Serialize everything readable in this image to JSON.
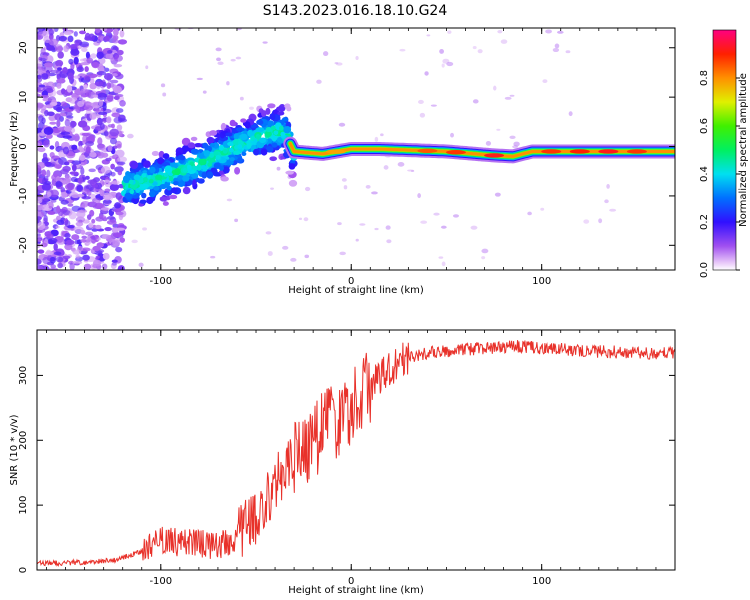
{
  "title": "S143.2023.016.18.10.G24",
  "chart_data": [
    {
      "type": "heatmap",
      "xlabel": "Height of straight line (km)",
      "ylabel": "Frequency (Hz)",
      "xlim": [
        -165,
        170
      ],
      "ylim": [
        -25,
        24
      ],
      "x_ticks": [
        -100,
        0,
        100
      ],
      "y_ticks": [
        -20,
        -10,
        0,
        10,
        20
      ],
      "colorbar": {
        "label": "Normalized spectral amplitude",
        "range": [
          0,
          1
        ],
        "ticks": [
          0.0,
          0.2,
          0.4,
          0.6,
          0.8
        ]
      },
      "ridge_trace": [
        {
          "x": -118,
          "y": -8
        },
        {
          "x": -100,
          "y": -6.5
        },
        {
          "x": -80,
          "y": -3.5
        },
        {
          "x": -60,
          "y": 0
        },
        {
          "x": -45,
          "y": 2.5
        },
        {
          "x": -35,
          "y": 3
        },
        {
          "x": -30,
          "y": -1
        },
        {
          "x": -15,
          "y": -1.5
        },
        {
          "x": 0,
          "y": -0.5
        },
        {
          "x": 15,
          "y": -0.5
        },
        {
          "x": 50,
          "y": -1
        },
        {
          "x": 75,
          "y": -1.8
        },
        {
          "x": 85,
          "y": -2
        },
        {
          "x": 95,
          "y": -1
        },
        {
          "x": 130,
          "y": -1
        },
        {
          "x": 170,
          "y": -1
        }
      ],
      "grid": false
    },
    {
      "type": "line",
      "xlabel": "Height of straight line (km)",
      "ylabel": "SNR (10 * v/v)",
      "xlim": [
        -165,
        170
      ],
      "ylim": [
        0,
        370
      ],
      "x_ticks": [
        -100,
        0,
        100
      ],
      "y_ticks": [
        0,
        100,
        200,
        300
      ],
      "color": "#e8312a",
      "series": [
        {
          "name": "",
          "x": [
            -165,
            -140,
            -125,
            -110,
            -100,
            -90,
            -80,
            -70,
            -60,
            -55,
            -50,
            -45,
            -40,
            -35,
            -30,
            -25,
            -20,
            -15,
            -10,
            -5,
            0,
            5,
            10,
            15,
            20,
            25,
            30,
            40,
            50,
            60,
            70,
            80,
            90,
            100,
            110,
            120,
            130,
            140,
            150,
            160,
            170
          ],
          "y": [
            10,
            12,
            15,
            28,
            45,
            42,
            40,
            38,
            50,
            65,
            85,
            110,
            130,
            155,
            170,
            185,
            200,
            215,
            225,
            235,
            250,
            265,
            285,
            300,
            312,
            320,
            328,
            335,
            338,
            340,
            342,
            344,
            345,
            342,
            340,
            338,
            337,
            336,
            335,
            334,
            335
          ]
        }
      ],
      "grid": false
    }
  ]
}
